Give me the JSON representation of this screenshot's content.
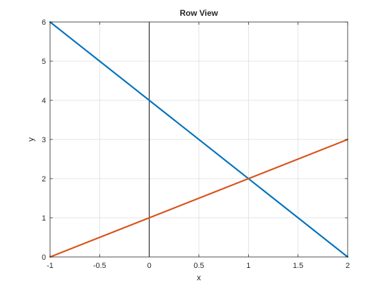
{
  "chart_data": {
    "type": "line",
    "title": "Row View",
    "xlabel": "x",
    "ylabel": "y",
    "xlim": [
      -1,
      2
    ],
    "ylim": [
      0,
      6
    ],
    "grid": true,
    "xticks": [
      "-1",
      "-0.5",
      "0",
      "0.5",
      "1",
      "1.5",
      "2"
    ],
    "yticks": [
      "0",
      "1",
      "2",
      "3",
      "4",
      "5",
      "6"
    ],
    "vertical_reference_line_x": 0,
    "series": [
      {
        "color": "#0072BD",
        "x": [
          -1,
          2
        ],
        "y": [
          6,
          0
        ]
      },
      {
        "color": "#D95319",
        "x": [
          -1,
          2
        ],
        "y": [
          0,
          3
        ]
      }
    ]
  }
}
